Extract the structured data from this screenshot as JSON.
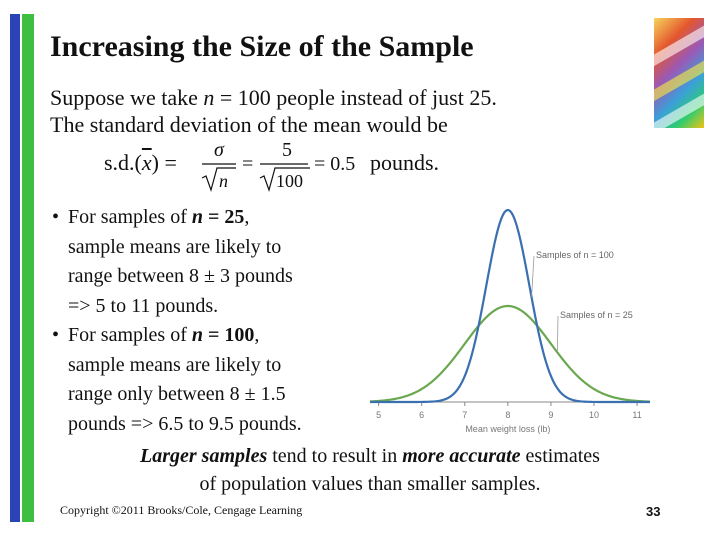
{
  "slide": {
    "title": "Increasing the Size of the Sample",
    "intro_lines": [
      "Suppose we take n = 100 people instead of just 25.",
      "The standard deviation of the mean would be"
    ],
    "formula": {
      "lhs": "s.d.(",
      "xbar": "x",
      "lhs_close": ") =",
      "sigma": "σ",
      "n": "n",
      "numerator": "5",
      "denominator": "100",
      "result": "= 0.5",
      "unit": "pounds."
    },
    "bullets": [
      {
        "lines": [
          "For samples of n = 25,",
          "sample means are likely to",
          "range between 8 ± 3 pounds",
          "=> 5 to 11 pounds."
        ]
      },
      {
        "lines": [
          "For samples of n = 100,",
          "sample means are likely to",
          "range only between 8 ± 1.5",
          "pounds => 6.5 to 9.5 pounds."
        ]
      }
    ],
    "conclusion_lines": [
      "Larger samples tend to result in more accurate estimates",
      "of population values than smaller samples."
    ],
    "copyright": "Copyright ©2011 Brooks/Cole, Cengage Learning",
    "page_number": "33",
    "colors": {
      "accent_blue": "#2a44b8",
      "accent_green": "#3fbf3f",
      "curve_blue": "#3a6fb0",
      "curve_green": "#6aa84f"
    }
  },
  "chart_data": {
    "type": "line",
    "xlabel": "Mean weight loss (lb)",
    "x_ticks": [
      5,
      6,
      7,
      8,
      9,
      10,
      11
    ],
    "xlim": [
      4.8,
      11.3
    ],
    "series": [
      {
        "name": "Samples of n = 100",
        "distribution": "normal",
        "mean": 8,
        "sd": 0.5,
        "color": "#3a6fb0"
      },
      {
        "name": "Samples of n = 25",
        "distribution": "normal",
        "mean": 8,
        "sd": 1.0,
        "color": "#6aa84f"
      }
    ],
    "annotations": [
      "Samples of n = 100",
      "Samples of n = 25"
    ]
  }
}
